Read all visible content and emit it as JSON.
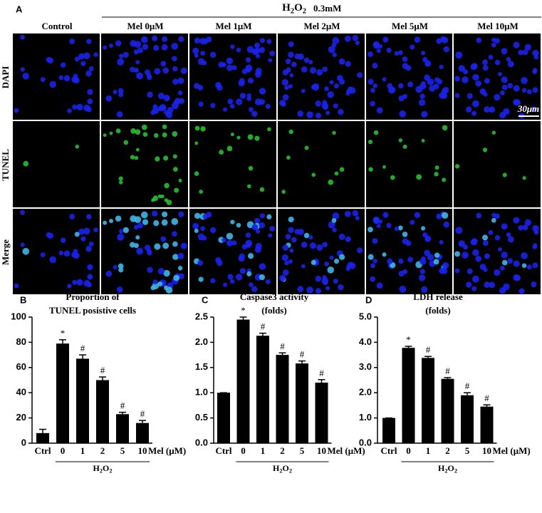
{
  "panel_a": {
    "letter": "A",
    "treatment": [
      "H",
      "2",
      "O",
      "2"
    ],
    "concentration": "0.3mM",
    "columns": [
      "Control",
      "Mel 0μM",
      "Mel 1μM",
      "Mel 2μM",
      "Mel 5μM",
      "Mel 10μM"
    ],
    "rows": [
      "DAPI",
      "TUNEL",
      "Merge"
    ],
    "scale_bar": "30μm"
  },
  "chart_data": [
    {
      "type": "bar",
      "letter": "B",
      "title": [
        "Proportion of",
        "TUNEL posistive cells"
      ],
      "categories": [
        "Ctrl",
        "0",
        "1",
        "2",
        "5",
        "10"
      ],
      "x_unit": "Mel (μM)",
      "group": [
        "H",
        "2",
        "O",
        "2"
      ],
      "values": [
        8,
        79,
        67,
        50,
        23,
        16
      ],
      "errors": [
        3,
        3,
        3,
        2.5,
        1.5,
        2
      ],
      "markers": [
        null,
        "*",
        "#",
        "#",
        "#",
        "#"
      ],
      "color": "#000000",
      "ylim": [
        0,
        100
      ],
      "yticks": [
        0,
        20,
        40,
        60,
        80,
        100
      ]
    },
    {
      "type": "bar",
      "letter": "C",
      "title": [
        "Caspase3 activity",
        "(folds)"
      ],
      "categories": [
        "Ctrl",
        "0",
        "1",
        "2",
        "5",
        "10"
      ],
      "x_unit": "Mel (μM)",
      "group": [
        "H",
        "2",
        "O",
        "2"
      ],
      "values": [
        1.0,
        2.45,
        2.13,
        1.75,
        1.58,
        1.2
      ],
      "errors": [
        0,
        0.05,
        0.05,
        0.04,
        0.05,
        0.06
      ],
      "markers": [
        null,
        "*",
        "#",
        "#",
        "#",
        "#"
      ],
      "color": "#000000",
      "ylim": [
        0,
        2.5
      ],
      "yticks": [
        {
          "value": 0,
          "label": "0.0"
        },
        0.5,
        {
          "value": 1,
          "label": "1.0"
        },
        1.5,
        {
          "value": 2,
          "label": "2.0"
        },
        2.5
      ]
    },
    {
      "type": "bar",
      "letter": "D",
      "title": [
        "LDH release",
        "(folds)"
      ],
      "categories": [
        "Ctrl",
        "0",
        "1",
        "2",
        "5",
        "10"
      ],
      "x_unit": "Mel (μM)",
      "group": [
        "H",
        "2",
        "O",
        "2"
      ],
      "values": [
        1.0,
        3.78,
        3.38,
        2.55,
        1.9,
        1.45
      ],
      "errors": [
        0,
        0.06,
        0.06,
        0.05,
        0.1,
        0.07
      ],
      "markers": [
        null,
        "*",
        "#",
        "#",
        "#",
        "#"
      ],
      "color": "#000000",
      "ylim": [
        0,
        5
      ],
      "yticks": [
        {
          "value": 0,
          "label": "0.0"
        },
        {
          "value": 1,
          "label": "1.0"
        },
        {
          "value": 2,
          "label": "2.0"
        },
        {
          "value": 3,
          "label": "3.0"
        },
        {
          "value": 4,
          "label": "4.0"
        },
        {
          "value": 5,
          "label": "5.0"
        }
      ]
    }
  ]
}
